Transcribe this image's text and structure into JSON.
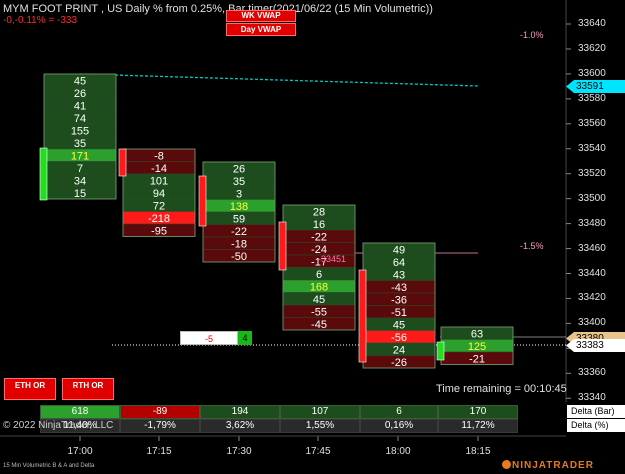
{
  "header": {
    "title": "MYM FOOT PRINT , US Daily % from 0.25%, Bar timer(2021/06/22 (15 Min Volumetric))",
    "subtitle": "-0,-0.11% = -333",
    "wk_vwap_label": "WK VWAP",
    "day_vwap_label": "Day VWAP"
  },
  "price_axis": {
    "labels": [
      "33640",
      "33620",
      "33600",
      "33580",
      "33560",
      "33540",
      "33520",
      "33500",
      "33480",
      "33460",
      "33440",
      "33420",
      "33400",
      "33380",
      "33360",
      "33340"
    ],
    "current_price": "33591",
    "last_price": "33383",
    "top_hidden_label": "33380"
  },
  "time_axis": {
    "labels": [
      "17:00",
      "17:15",
      "17:30",
      "17:45",
      "18:00",
      "18:15"
    ]
  },
  "annotations": {
    "pct_top": "-1.0%",
    "pct_mid": "-1.5%",
    "marker_mid": "-33451",
    "order_qty": "-5",
    "order_count": "4",
    "time_remaining": "Time remaining = 00:10:45",
    "copyright": "© 2022 NinjaTrader, LLC"
  },
  "buttons": {
    "eth_or": "ETH OR",
    "rth_or": "RTH OR"
  },
  "footprint_bars": [
    {
      "values": [
        "45",
        "26",
        "41",
        "74",
        "155",
        "35",
        "171",
        "7",
        "34",
        "15"
      ],
      "highlight_index": 6
    },
    {
      "values": [
        "-8",
        "-14",
        "101",
        "94",
        "72",
        "-218",
        "-95"
      ],
      "highlight_index": 5
    },
    {
      "values": [
        "26",
        "35",
        "3",
        "138",
        "59",
        "-22",
        "-18",
        "-50"
      ],
      "highlight_index": 3
    },
    {
      "values": [
        "28",
        "16",
        "-22",
        "-24",
        "-17",
        "6",
        "168",
        "45",
        "-55",
        "-45"
      ],
      "highlight_index": 6
    },
    {
      "values": [
        "49",
        "64",
        "43",
        "-43",
        "-36",
        "-51",
        "45",
        "-56",
        "24",
        "-26"
      ],
      "highlight_index": 7
    },
    {
      "values": [
        "63",
        "125",
        "-21"
      ],
      "highlight_index": 1
    }
  ],
  "delta_table": {
    "row_labels": [
      "Delta (Bar)",
      "Delta (%)"
    ],
    "delta_bar": [
      "618",
      "-89",
      "194",
      "107",
      "6",
      "170"
    ],
    "delta_pct": [
      "11,40%",
      "-1,79%",
      "3,62%",
      "1,55%",
      "0,16%",
      "11,72%"
    ]
  },
  "footer": {
    "instrument": "15 Min Volumetric B & A and Delta",
    "logo_text": "NINJATRADER"
  },
  "colors": {
    "pos_cell": "#1d4d1d",
    "neg_cell": "#5a0a0a",
    "highlight_pos": "#2ca02c",
    "highlight_neg": "#ff1a1a",
    "vwap_line": "#00c8c8",
    "axis_tag": "#00e5ff"
  }
}
